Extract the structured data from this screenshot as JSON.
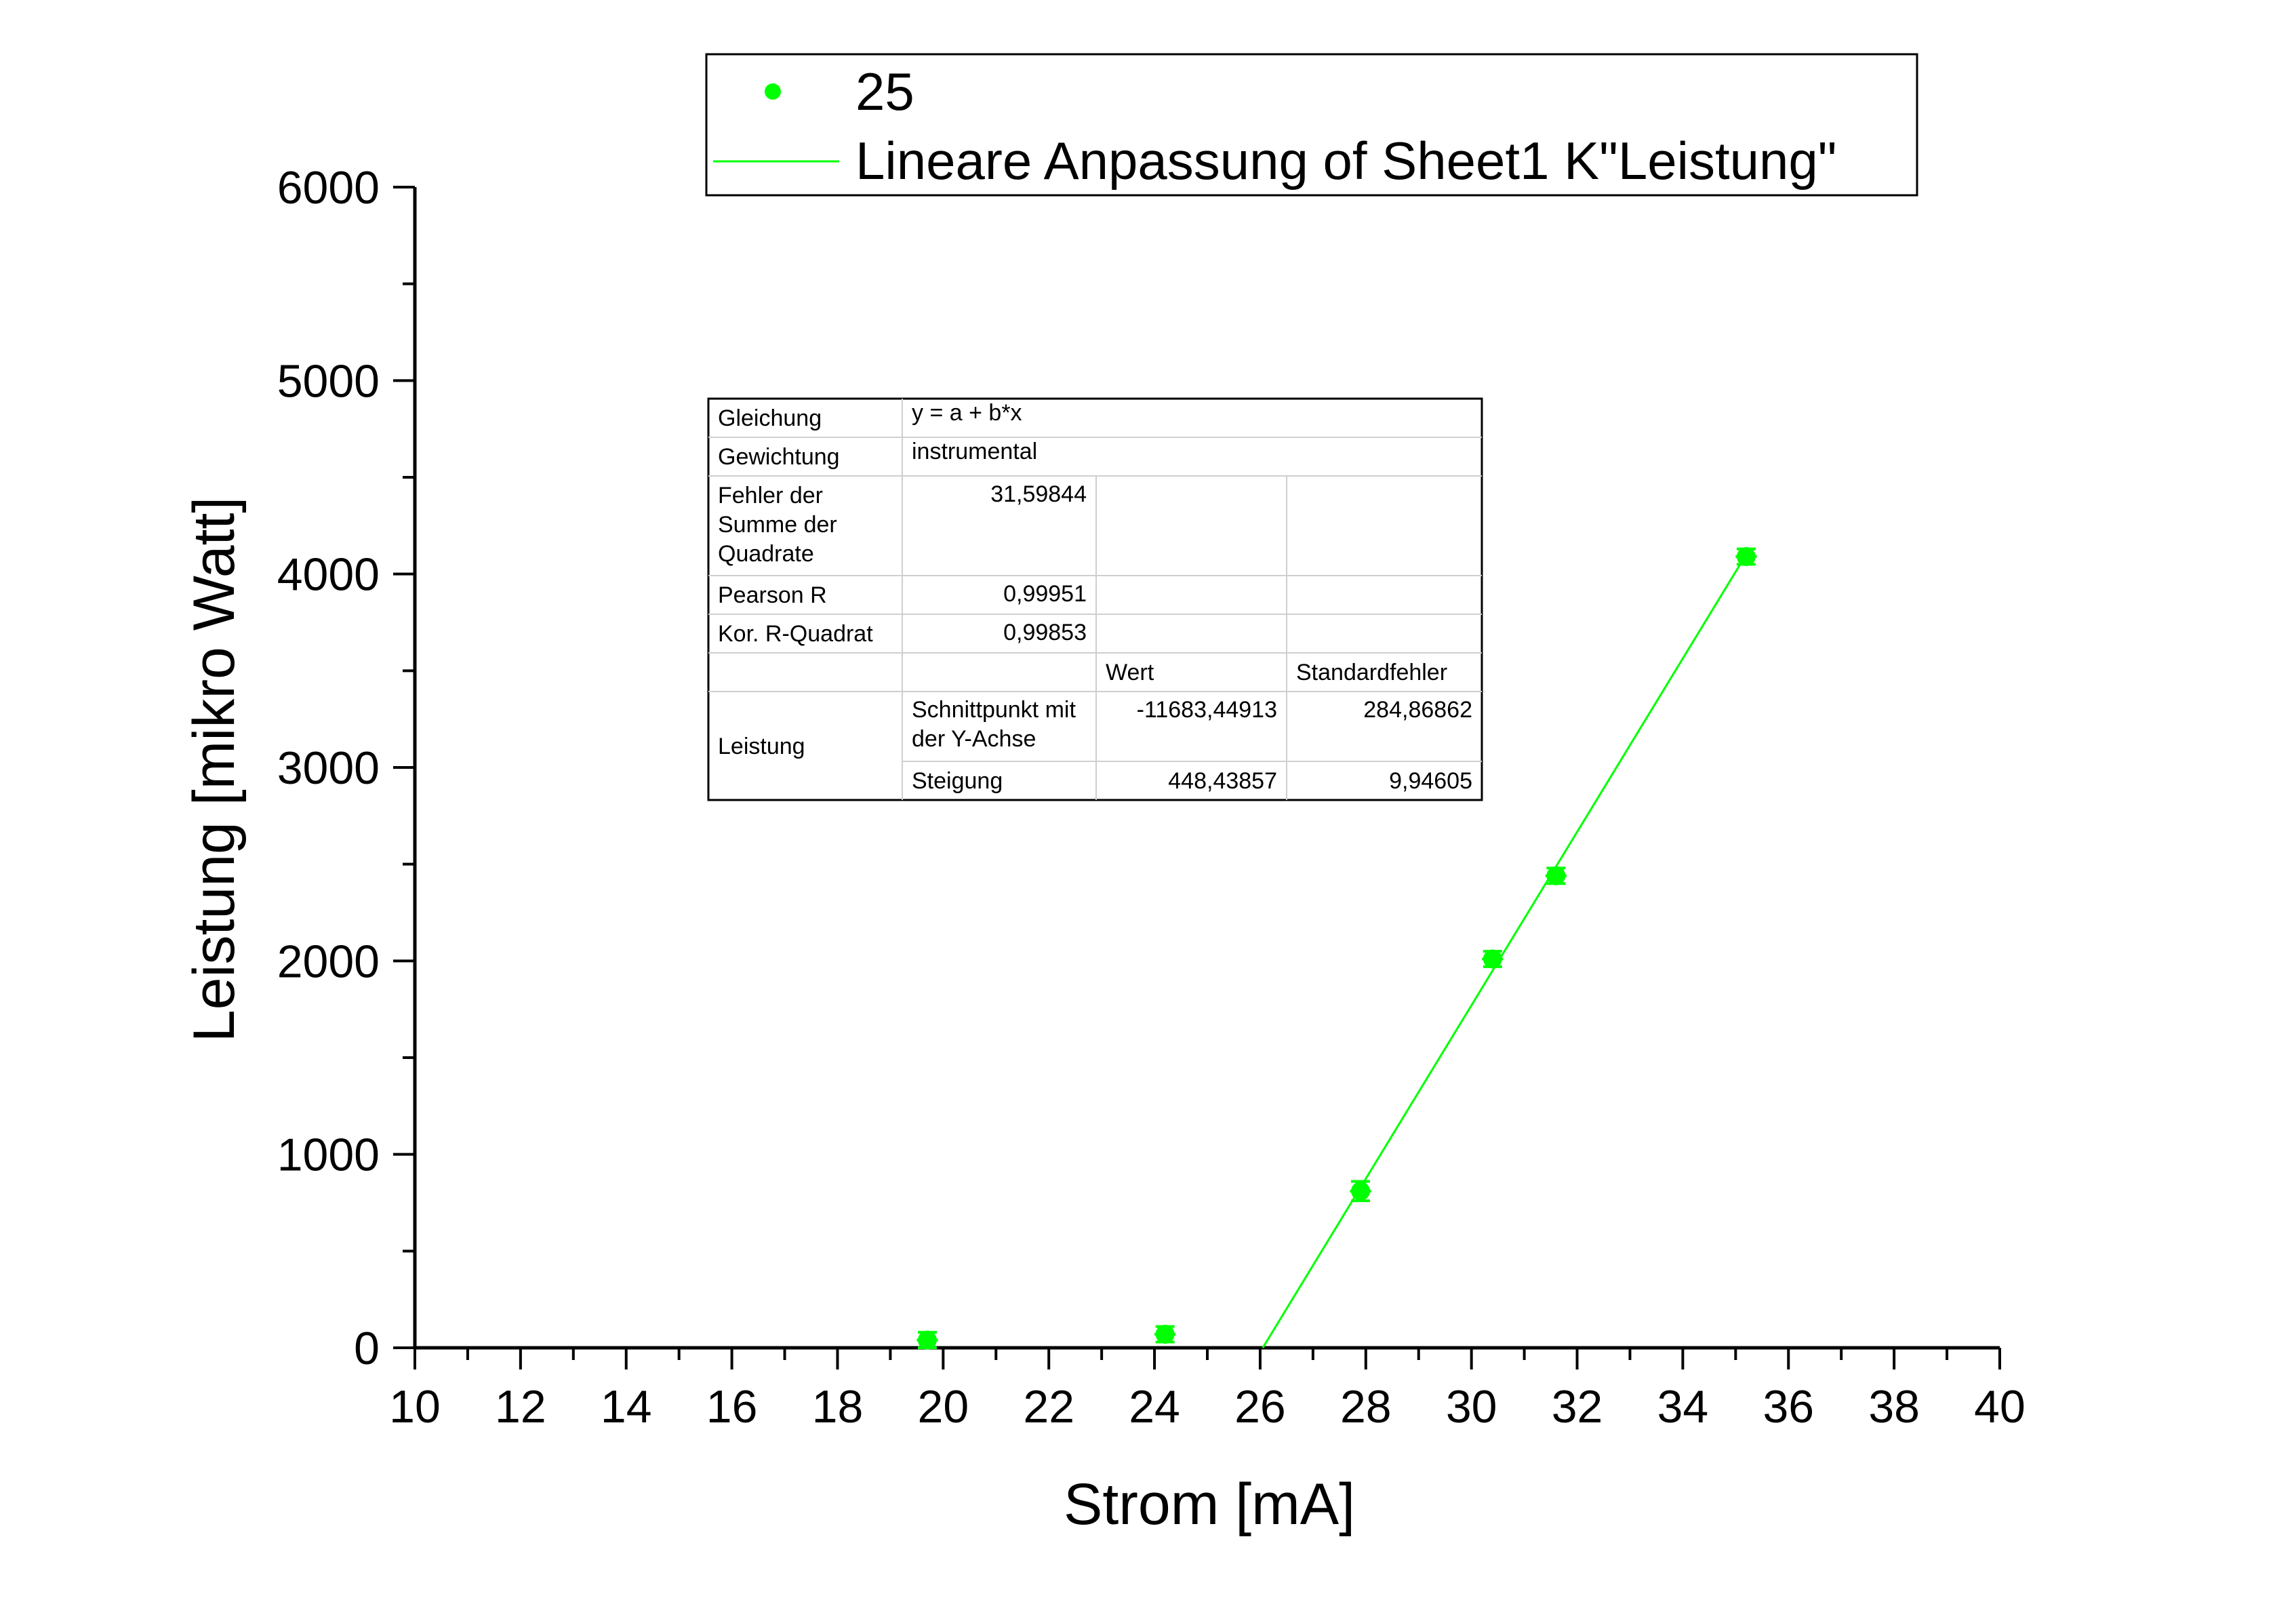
{
  "chart_data": {
    "type": "scatter",
    "xlabel": "Strom [mA]",
    "ylabel": "Leistung [mikro Watt]",
    "xlim": [
      10,
      40
    ],
    "ylim": [
      0,
      6000
    ],
    "x_ticks": [
      "10",
      "12",
      "14",
      "16",
      "18",
      "20",
      "22",
      "24",
      "26",
      "28",
      "30",
      "32",
      "34",
      "36",
      "38",
      "40"
    ],
    "y_ticks": [
      "0",
      "1000",
      "2000",
      "3000",
      "4000",
      "5000",
      "6000"
    ],
    "grid": false,
    "legend_position": "top",
    "colors": {
      "series": "#00ff00",
      "axis": "#000000"
    },
    "series": [
      {
        "name": "25",
        "type": "scatter",
        "x": [
          19.7,
          24.2,
          27.9,
          30.4,
          31.6,
          35.2
        ],
        "y": [
          40,
          70,
          810,
          2010,
          2440,
          4090
        ],
        "x_err": [
          0.2,
          0.2,
          0.2,
          0.2,
          0.2,
          0.2
        ],
        "y_err": [
          40,
          40,
          50,
          40,
          40,
          40
        ]
      },
      {
        "name": "Lineare Anpassung of Sheet1 K\"Leistung\"",
        "type": "line",
        "x": [
          26.05,
          35.2
        ],
        "y": [
          0,
          4101
        ]
      }
    ],
    "fit_table": {
      "rows": [
        [
          "Gleichung",
          "y = a + b*x",
          "",
          ""
        ],
        [
          "Gewichtung",
          "instrumental",
          "",
          ""
        ],
        [
          "Fehler der\nSumme der\nQuadrate",
          "31,59844",
          "",
          ""
        ],
        [
          "Pearson R",
          "0,99951",
          "",
          ""
        ],
        [
          "Kor. R-Quadrat",
          "0,99853",
          "",
          ""
        ],
        [
          "",
          "",
          "Wert",
          "Standardfehler"
        ],
        [
          "Leistung",
          "Schnittpunkt mit\n der Y-Achse",
          "-11683,44913",
          "284,86862"
        ],
        [
          "",
          "Steigung",
          "448,43857",
          "9,94605"
        ]
      ]
    }
  }
}
